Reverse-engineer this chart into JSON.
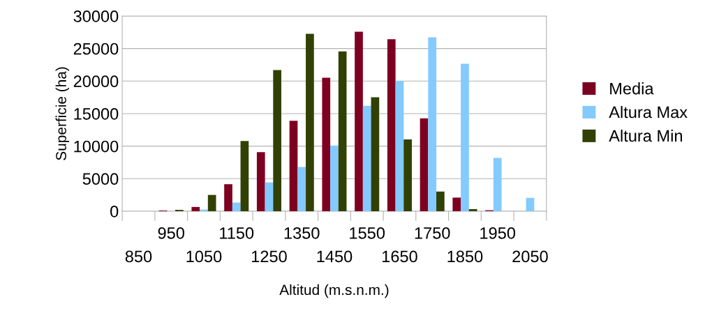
{
  "chart_data": {
    "type": "bar",
    "xlabel": "Altitud (m.s.n.m.)",
    "ylabel": "Superficie (ha)",
    "categories": [
      "850",
      "950",
      "1050",
      "1150",
      "1250",
      "1350",
      "1450",
      "1550",
      "1650",
      "1750",
      "1850",
      "1950",
      "2050"
    ],
    "series": [
      {
        "name": "Media",
        "color": "#7e0021",
        "values": [
          0,
          100,
          650,
          4150,
          9070,
          13900,
          20500,
          27580,
          26430,
          14260,
          2090,
          140,
          0
        ]
      },
      {
        "name": "Altura Max",
        "color": "#83caff",
        "values": [
          0,
          0,
          250,
          1330,
          4430,
          6800,
          10100,
          16200,
          19990,
          26720,
          22650,
          8200,
          2050
        ]
      },
      {
        "name": "Altura Min",
        "color": "#314004",
        "values": [
          0,
          200,
          2500,
          10800,
          21700,
          27260,
          24560,
          17500,
          11020,
          3020,
          320,
          0,
          0
        ]
      }
    ],
    "ylim": [
      0,
      30000
    ],
    "yticks": [
      0,
      5000,
      10000,
      15000,
      20000,
      25000,
      30000
    ],
    "grid": "y",
    "legend": "right"
  }
}
